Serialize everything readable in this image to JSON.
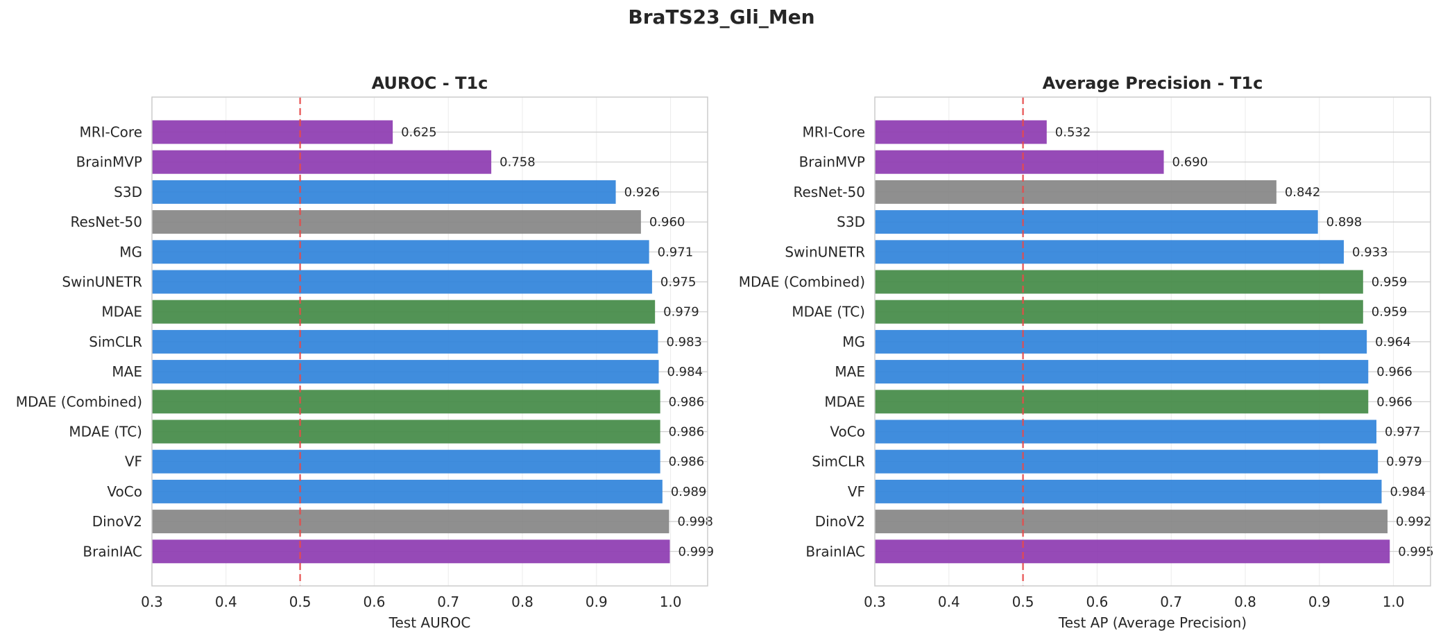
{
  "figure": {
    "suptitle": "BraTS23_Gli_Men"
  },
  "colors": {
    "purple": "#8E3CB2",
    "blue": "#3184DA",
    "gray": "#868686",
    "green": "#458B48",
    "reference_line": "#E84A4A",
    "grid": "#EBEBEB",
    "spine": "#CCCCCC"
  },
  "chart_data": [
    {
      "type": "bar",
      "orientation": "horizontal",
      "title": "AUROC - T1c",
      "xlabel": "Test AUROC",
      "ylabel": "",
      "xlim": [
        0.3,
        1.05
      ],
      "xticks": [
        0.3,
        0.4,
        0.5,
        0.6,
        0.7,
        0.8,
        0.9,
        1.0
      ],
      "xtick_labels": [
        "0.3",
        "0.4",
        "0.5",
        "0.6",
        "0.7",
        "0.8",
        "0.9",
        "1.0"
      ],
      "reference_line": 0.5,
      "grid": true,
      "categories": [
        "MRI-Core",
        "BrainMVP",
        "S3D",
        "ResNet-50",
        "MG",
        "SwinUNETR",
        "MDAE",
        "SimCLR",
        "MAE",
        "MDAE (Combined)",
        "MDAE (TC)",
        "VF",
        "VoCo",
        "DinoV2",
        "BrainIAC"
      ],
      "values": [
        0.625,
        0.758,
        0.926,
        0.96,
        0.971,
        0.975,
        0.979,
        0.983,
        0.984,
        0.986,
        0.986,
        0.986,
        0.989,
        0.998,
        0.999
      ],
      "value_labels": [
        "0.625",
        "0.758",
        "0.926",
        "0.960",
        "0.971",
        "0.975",
        "0.979",
        "0.983",
        "0.984",
        "0.986",
        "0.986",
        "0.986",
        "0.989",
        "0.998",
        "0.999"
      ],
      "bar_colors": [
        "purple",
        "purple",
        "blue",
        "gray",
        "blue",
        "blue",
        "green",
        "blue",
        "blue",
        "green",
        "green",
        "blue",
        "blue",
        "gray",
        "purple"
      ]
    },
    {
      "type": "bar",
      "orientation": "horizontal",
      "title": "Average Precision - T1c",
      "xlabel": "Test AP (Average Precision)",
      "ylabel": "",
      "xlim": [
        0.3,
        1.05
      ],
      "xticks": [
        0.3,
        0.4,
        0.5,
        0.6,
        0.7,
        0.8,
        0.9,
        1.0
      ],
      "xtick_labels": [
        "0.3",
        "0.4",
        "0.5",
        "0.6",
        "0.7",
        "0.8",
        "0.9",
        "1.0"
      ],
      "reference_line": 0.5,
      "grid": true,
      "categories": [
        "MRI-Core",
        "BrainMVP",
        "ResNet-50",
        "S3D",
        "SwinUNETR",
        "MDAE (Combined)",
        "MDAE (TC)",
        "MG",
        "MAE",
        "MDAE",
        "VoCo",
        "SimCLR",
        "VF",
        "DinoV2",
        "BrainIAC"
      ],
      "values": [
        0.532,
        0.69,
        0.842,
        0.898,
        0.933,
        0.959,
        0.959,
        0.964,
        0.966,
        0.966,
        0.977,
        0.979,
        0.984,
        0.992,
        0.995
      ],
      "value_labels": [
        "0.532",
        "0.690",
        "0.842",
        "0.898",
        "0.933",
        "0.959",
        "0.959",
        "0.964",
        "0.966",
        "0.966",
        "0.977",
        "0.979",
        "0.984",
        "0.992",
        "0.995"
      ],
      "bar_colors": [
        "purple",
        "purple",
        "gray",
        "blue",
        "blue",
        "green",
        "green",
        "blue",
        "blue",
        "green",
        "blue",
        "blue",
        "blue",
        "gray",
        "purple"
      ]
    }
  ]
}
